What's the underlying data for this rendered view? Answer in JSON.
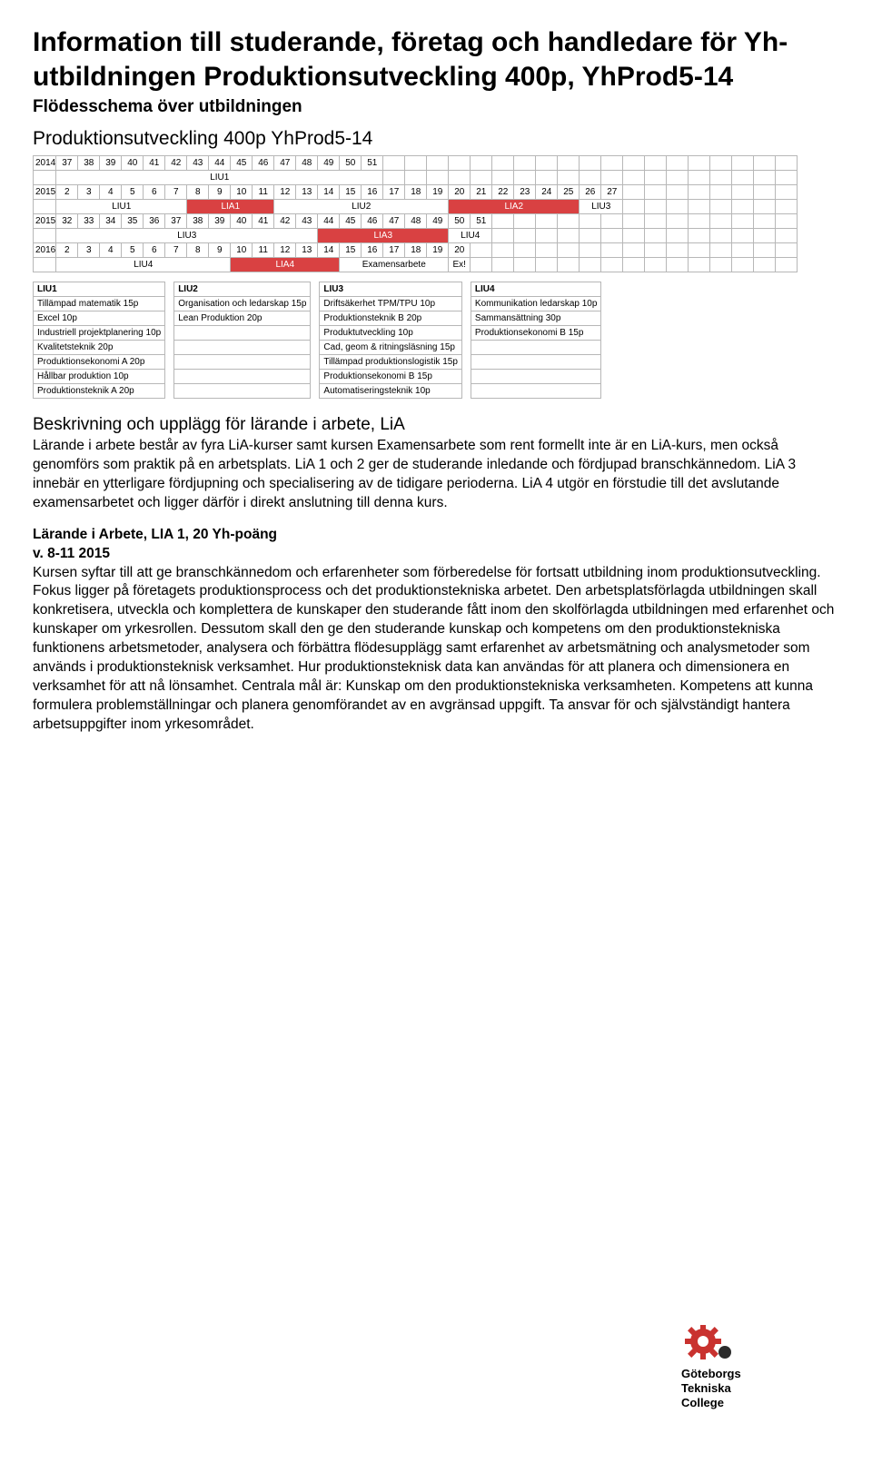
{
  "title": "Information till studerande, företag och handledare för Yh-utbildningen Produktionsutveckling 400p, YhProd5-14",
  "subtitle": "Flödesschema över utbildningen",
  "flow_title": "Produktionsutveckling 400p YhProd5-14",
  "schedule": {
    "rows": [
      {
        "year": "2014",
        "weeks": [
          "37",
          "38",
          "39",
          "40",
          "41",
          "42",
          "43",
          "44",
          "45",
          "46",
          "47",
          "48",
          "49",
          "50",
          "51",
          "",
          "",
          "",
          "",
          "",
          "",
          "",
          "",
          "",
          "",
          "",
          "",
          "",
          "",
          "",
          "",
          "",
          "",
          ""
        ]
      },
      {
        "year": "",
        "weeks": [
          "",
          "",
          "",
          "",
          "",
          "",
          "",
          "",
          "",
          "",
          "",
          "",
          "",
          "",
          "",
          "",
          "",
          "",
          "",
          "",
          "",
          "",
          "",
          "",
          "",
          "",
          "",
          "",
          "",
          "",
          "",
          "",
          "",
          ""
        ],
        "blocks": [
          {
            "start": 0,
            "span": 15,
            "label": "LIU1",
            "cls": ""
          }
        ]
      },
      {
        "year": "2015",
        "weeks": [
          "2",
          "3",
          "4",
          "5",
          "6",
          "7",
          "8",
          "9",
          "10",
          "11",
          "12",
          "13",
          "14",
          "15",
          "16",
          "17",
          "18",
          "19",
          "20",
          "21",
          "22",
          "23",
          "24",
          "25",
          "26",
          "27",
          "",
          "",
          "",
          "",
          "",
          "",
          "",
          ""
        ]
      },
      {
        "year": "",
        "weeks": [],
        "blocks": [
          {
            "start": 0,
            "span": 6,
            "label": "LIU1",
            "cls": ""
          },
          {
            "start": 6,
            "span": 4,
            "label": "LIA1",
            "cls": "red"
          },
          {
            "start": 10,
            "span": 8,
            "label": "LIU2",
            "cls": ""
          },
          {
            "start": 18,
            "span": 6,
            "label": "LIA2",
            "cls": "red"
          },
          {
            "start": 24,
            "span": 2,
            "label": "LIU3",
            "cls": ""
          }
        ]
      },
      {
        "year": "2015",
        "weeks": [
          "32",
          "33",
          "34",
          "35",
          "36",
          "37",
          "38",
          "39",
          "40",
          "41",
          "42",
          "43",
          "44",
          "45",
          "46",
          "47",
          "48",
          "49",
          "50",
          "51",
          "",
          "",
          "",
          "",
          "",
          "",
          "",
          "",
          "",
          "",
          "",
          "",
          "",
          ""
        ]
      },
      {
        "year": "",
        "weeks": [],
        "blocks": [
          {
            "start": 0,
            "span": 12,
            "label": "LIU3",
            "cls": ""
          },
          {
            "start": 12,
            "span": 6,
            "label": "LIA3",
            "cls": "red"
          },
          {
            "start": 18,
            "span": 2,
            "label": "LIU4",
            "cls": ""
          }
        ]
      },
      {
        "year": "2016",
        "weeks": [
          "2",
          "3",
          "4",
          "5",
          "6",
          "7",
          "8",
          "9",
          "10",
          "11",
          "12",
          "13",
          "14",
          "15",
          "16",
          "17",
          "18",
          "19",
          "20",
          "",
          "",
          "",
          "",
          "",
          "",
          "",
          "",
          "",
          "",
          "",
          "",
          "",
          "",
          ""
        ]
      },
      {
        "year": "",
        "weeks": [],
        "blocks": [
          {
            "start": 0,
            "span": 8,
            "label": "LIU4",
            "cls": ""
          },
          {
            "start": 8,
            "span": 5,
            "label": "LIA4",
            "cls": "red"
          },
          {
            "start": 13,
            "span": 5,
            "label": "Examensarbete",
            "cls": ""
          },
          {
            "start": 18,
            "span": 1,
            "label": "Ex!",
            "cls": ""
          }
        ]
      }
    ],
    "cols": 34
  },
  "courses": {
    "headers": [
      "LIU1",
      "LIU2",
      "LIU3",
      "LIU4"
    ],
    "rows": [
      [
        "Tillämpad matematik 15p",
        "Organisation och ledarskap 15p",
        "Driftsäkerhet TPM/TPU 10p",
        "Kommunikation ledarskap 10p"
      ],
      [
        "Excel 10p",
        "Lean Produktion 20p",
        "Produktionsteknik B 20p",
        "Sammansättning 30p"
      ],
      [
        "Industriell projektplanering 10p",
        "",
        "Produktutveckling 10p",
        "Produktionsekonomi B 15p"
      ],
      [
        "Kvalitetsteknik 20p",
        "",
        "Cad, geom & ritningsläsning 15p",
        ""
      ],
      [
        "Produktionsekonomi A 20p",
        "",
        "Tillämpad produktionslogistik 15p",
        ""
      ],
      [
        "Hållbar produktion 10p",
        "",
        "Produktionsekonomi B 15p",
        ""
      ],
      [
        "Produktionsteknik A 20p",
        "",
        "Automatiseringsteknik 10p",
        ""
      ]
    ]
  },
  "section_beskrivning": {
    "heading": "Beskrivning och upplägg för lärande i arbete, LiA",
    "text": "Lärande i arbete består av fyra LiA-kurser samt kursen Examensarbete som rent formellt inte är en LiA-kurs, men också genomförs som praktik på en arbetsplats. LiA 1 och 2 ger de studerande inledande och fördjupad branschkännedom. LiA 3 innebär en ytterligare fördjupning och specialisering av de tidigare perioderna. LiA 4 utgör en förstudie till det avslutande examensarbetet och ligger därför i direkt anslutning till denna kurs."
  },
  "section_lia1": {
    "heading": "Lärande i Arbete, LIA 1, 20 Yh-poäng",
    "dates": "v. 8-11 2015",
    "text": "Kursen syftar till att ge branschkännedom och erfarenheter som förberedelse för fortsatt utbildning inom produktionsutveckling. Fokus ligger på företagets produktionsprocess och det produktionstekniska arbetet. Den arbetsplatsförlagda utbildningen skall konkretisera, utveckla och komplettera de kunskaper den studerande fått inom den skolförlagda utbildningen med erfarenhet och kunskaper om yrkesrollen. Dessutom skall den ge den studerande kunskap och kompetens om den produktionstekniska funktionens arbetsmetoder, analysera och förbättra flödesupplägg samt erfarenhet av arbetsmätning och analysmetoder som används i produktionsteknisk verksamhet. Hur produktionsteknisk data kan användas för att planera och dimensionera en verksamhet för att nå lönsamhet. Centrala mål är: Kunskap om den produktionstekniska verksamheten. Kompetens att kunna formulera problemställningar och planera genomförandet av en avgränsad uppgift. Ta ansvar för och självständigt hantera arbetsuppgifter inom yrkesområdet."
  },
  "logo": {
    "text1": "Göteborgs",
    "text2": "Tekniska",
    "text3": "College",
    "gear_color": "#c9322f",
    "dot_color": "#2b2b2b"
  }
}
